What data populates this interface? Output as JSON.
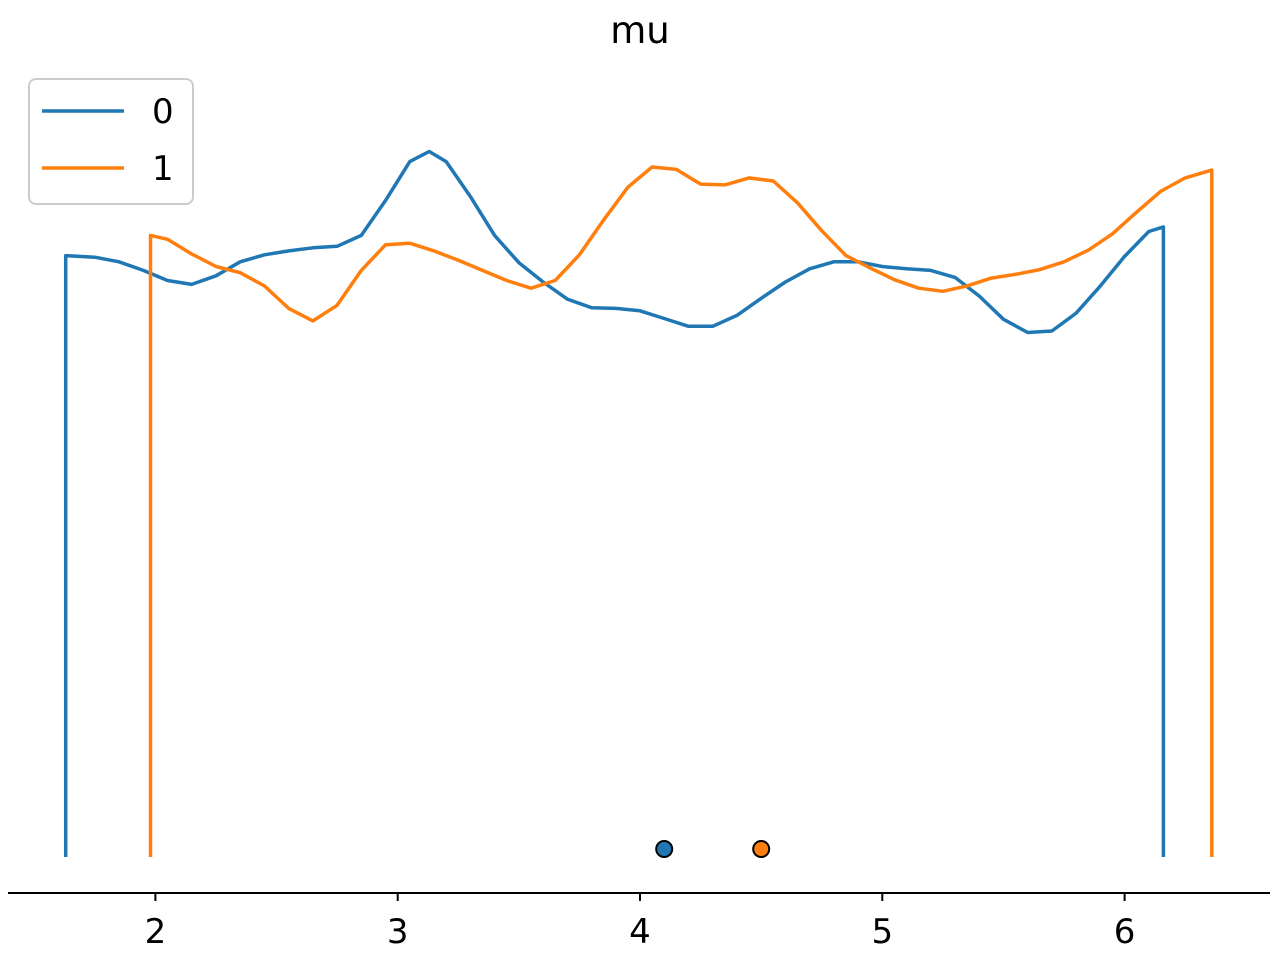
{
  "chart_data": {
    "type": "line",
    "title": "mu",
    "xlabel": "",
    "ylabel": "",
    "xlim": [
      1.4,
      6.6
    ],
    "ylim": [
      0,
      1.0
    ],
    "xticks": [
      2,
      3,
      4,
      5,
      6
    ],
    "xtick_labels": [
      "2",
      "3",
      "4",
      "5",
      "6"
    ],
    "grid": false,
    "legend_position": "top-left",
    "series": [
      {
        "name": "0",
        "color": "#1f77b4",
        "x": [
          1.63,
          1.75,
          1.85,
          1.95,
          2.05,
          2.15,
          2.25,
          2.35,
          2.45,
          2.55,
          2.65,
          2.75,
          2.85,
          2.95,
          3.05,
          3.13,
          3.2,
          3.3,
          3.4,
          3.5,
          3.6,
          3.7,
          3.8,
          3.9,
          4.0,
          4.1,
          4.2,
          4.3,
          4.4,
          4.5,
          4.6,
          4.7,
          4.8,
          4.9,
          5.0,
          5.1,
          5.2,
          5.3,
          5.4,
          5.5,
          5.6,
          5.7,
          5.8,
          5.9,
          6.0,
          6.1,
          6.16
        ],
        "y": [
          0.774,
          0.772,
          0.766,
          0.755,
          0.742,
          0.737,
          0.748,
          0.766,
          0.775,
          0.78,
          0.784,
          0.786,
          0.8,
          0.845,
          0.895,
          0.908,
          0.895,
          0.85,
          0.8,
          0.765,
          0.74,
          0.718,
          0.707,
          0.706,
          0.703,
          0.693,
          0.683,
          0.683,
          0.697,
          0.719,
          0.74,
          0.757,
          0.766,
          0.766,
          0.76,
          0.757,
          0.755,
          0.746,
          0.722,
          0.692,
          0.675,
          0.677,
          0.7,
          0.735,
          0.773,
          0.805,
          0.811
        ]
      },
      {
        "name": "1",
        "color": "#ff7f0e",
        "x": [
          1.98,
          2.05,
          2.15,
          2.25,
          2.35,
          2.45,
          2.55,
          2.65,
          2.75,
          2.85,
          2.95,
          3.05,
          3.15,
          3.25,
          3.35,
          3.45,
          3.55,
          3.65,
          3.75,
          3.85,
          3.95,
          4.05,
          4.15,
          4.25,
          4.35,
          4.45,
          4.55,
          4.65,
          4.75,
          4.85,
          4.95,
          5.05,
          5.15,
          5.25,
          5.35,
          5.45,
          5.55,
          5.65,
          5.75,
          5.85,
          5.95,
          6.05,
          6.15,
          6.25,
          6.36
        ],
        "y": [
          0.8,
          0.795,
          0.776,
          0.76,
          0.752,
          0.735,
          0.706,
          0.69,
          0.71,
          0.755,
          0.788,
          0.79,
          0.78,
          0.768,
          0.755,
          0.742,
          0.732,
          0.742,
          0.775,
          0.82,
          0.862,
          0.888,
          0.885,
          0.866,
          0.865,
          0.874,
          0.87,
          0.842,
          0.806,
          0.774,
          0.758,
          0.743,
          0.732,
          0.728,
          0.735,
          0.745,
          0.75,
          0.756,
          0.766,
          0.781,
          0.802,
          0.83,
          0.857,
          0.874,
          0.884
        ]
      }
    ],
    "points": [
      {
        "series": "0",
        "x": 4.1,
        "y": 0.0,
        "color": "#1f77b4"
      },
      {
        "series": "1",
        "x": 4.5,
        "y": 0.0,
        "color": "#ff7f0e"
      }
    ]
  }
}
